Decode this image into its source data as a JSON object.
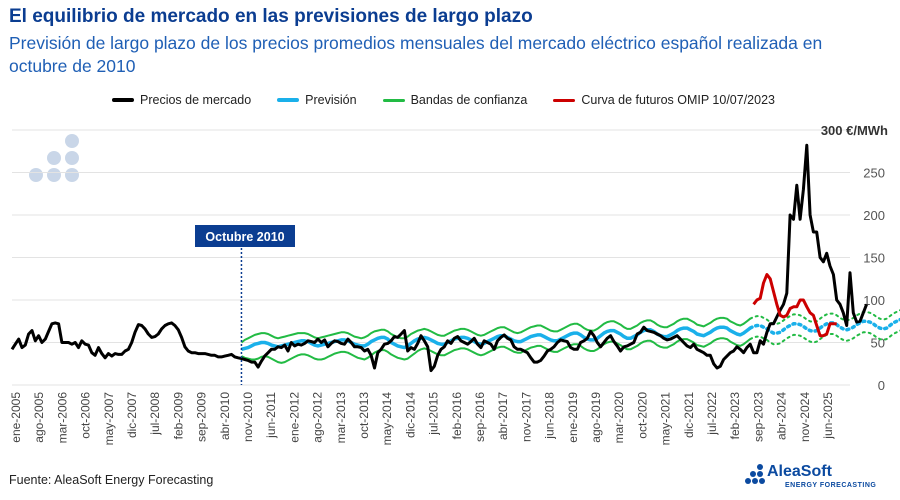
{
  "title": "El equilibrio de mercado en las previsiones de largo plazo",
  "subtitle": "Previsión de largo plazo de los precios promedios mensuales del mercado eléctrico español realizada en octubre de 2010",
  "source": "Fuente: AleaSoft Energy Forecasting",
  "brand": {
    "name": "AleaSoft",
    "tagline": "ENERGY FORECASTING"
  },
  "colors": {
    "market": "#000000",
    "forecast": "#1ab0ea",
    "bands": "#22bb44",
    "futures": "#cc0000",
    "marker_box": "#0b3d91"
  },
  "chart_data": {
    "type": "line",
    "ylabel": "€/MWh",
    "y_axis_unit_label": "300 €/MWh",
    "ylim": [
      0,
      300
    ],
    "yticks": [
      0,
      50,
      100,
      150,
      200,
      250
    ],
    "grid": true,
    "legend_position": "top",
    "x_range": [
      "2005-01",
      "2026-01"
    ],
    "xtick_labels": [
      "ene-2005",
      "ago-2005",
      "mar-2006",
      "oct-2006",
      "may-2007",
      "dic-2007",
      "jul-2008",
      "feb-2009",
      "sep-2009",
      "abr-2010",
      "nov-2010",
      "jun-2011",
      "ene-2012",
      "ago-2012",
      "mar-2013",
      "oct-2013",
      "may-2014",
      "dic-2014",
      "jul-2015",
      "feb-2016",
      "sep-2016",
      "abr-2017",
      "nov-2017",
      "jun-2018",
      "ene-2019",
      "ago-2019",
      "mar-2020",
      "oct-2020",
      "may-2021",
      "dic-2021",
      "jul-2022",
      "feb-2023",
      "sep-2023",
      "abr-2024",
      "nov-2024",
      "jun-2025"
    ],
    "annotation": {
      "label": "Octubre 2010",
      "x": "2010-10"
    },
    "legend": [
      "Precios de mercado",
      "Previsión",
      "Bandas de confianza",
      "Curva de futuros OMIP 10/07/2023"
    ],
    "series": [
      {
        "name": "Precios de mercado",
        "start": "2005-01",
        "values": [
          42,
          48,
          54,
          44,
          47,
          60,
          64,
          52,
          58,
          50,
          54,
          63,
          72,
          73,
          72,
          50,
          50,
          50,
          48,
          50,
          44,
          52,
          48,
          47,
          38,
          35,
          44,
          37,
          32,
          37,
          34,
          37,
          36,
          36,
          40,
          42,
          50,
          62,
          71,
          70,
          66,
          60,
          56,
          57,
          60,
          66,
          70,
          72,
          73,
          70,
          65,
          56,
          45,
          40,
          38,
          38,
          37,
          37,
          37,
          36,
          35,
          35,
          33,
          33,
          34,
          35,
          36,
          33,
          32,
          31,
          30,
          29,
          27,
          27,
          21,
          28,
          34,
          38,
          42,
          42,
          45,
          44,
          47,
          40,
          50,
          46,
          48,
          47,
          49,
          52,
          51,
          50,
          54,
          50,
          53,
          45,
          49,
          52,
          51,
          49,
          48,
          54,
          50,
          45,
          45,
          44,
          40,
          42,
          35,
          20,
          38,
          42,
          48,
          49,
          52,
          57,
          56,
          60,
          64,
          40,
          44,
          42,
          49,
          58,
          52,
          45,
          17,
          22,
          35,
          42,
          45,
          52,
          49,
          55,
          57,
          52,
          50,
          48,
          51,
          55,
          48,
          44,
          52,
          50,
          48,
          42,
          52,
          56,
          59,
          55,
          53,
          45,
          42,
          42,
          40,
          38,
          32,
          27,
          27,
          29,
          34,
          40,
          42,
          45,
          50,
          53,
          52,
          51,
          44,
          42,
          42,
          50,
          52,
          55,
          63,
          58,
          50,
          45,
          50,
          55,
          58,
          51,
          46,
          40,
          45,
          46,
          48,
          50,
          60,
          62,
          68,
          64,
          63,
          62,
          60,
          58,
          55,
          53,
          54,
          56,
          58,
          54,
          50,
          46,
          44,
          48,
          42,
          40,
          38,
          35,
          35,
          25,
          20,
          22,
          30,
          34,
          38,
          40,
          45,
          42,
          38,
          44,
          48,
          38,
          38,
          52,
          48,
          62,
          72,
          72,
          80,
          88,
          95,
          108,
          200,
          195,
          235,
          195,
          230,
          282,
          200,
          180,
          180,
          150,
          145,
          155,
          140,
          130,
          100,
          95,
          85,
          70,
          132,
          85,
          74,
          75,
          85,
          95
        ]
      },
      {
        "name": "Previsión",
        "start": "2010-10",
        "values": [
          42,
          43,
          44,
          46,
          48,
          49,
          50,
          50,
          49,
          47,
          46,
          45,
          46,
          47,
          48,
          49,
          50,
          51,
          52,
          52,
          51,
          49,
          47,
          46,
          47,
          48,
          49,
          50,
          51,
          52,
          53,
          53,
          52,
          50,
          48,
          47,
          46,
          46,
          48,
          51,
          53,
          55,
          56,
          56,
          54,
          50,
          48,
          46,
          45,
          44,
          46,
          49,
          52,
          54,
          55,
          56,
          55,
          53,
          51,
          49,
          48,
          48,
          50,
          52,
          54,
          55,
          56,
          56,
          55,
          53,
          51,
          49,
          48,
          49,
          51,
          53,
          55,
          57,
          58,
          58,
          56,
          54,
          52,
          51,
          51,
          53,
          55,
          57,
          58,
          59,
          59,
          57,
          55,
          53,
          52,
          52,
          54,
          56,
          58,
          60,
          61,
          61,
          59,
          56,
          54,
          53,
          53,
          55,
          58,
          61,
          63,
          64,
          64,
          62,
          60,
          57,
          55,
          55,
          57,
          59,
          62,
          64,
          65,
          65,
          63,
          60,
          58,
          57,
          57,
          59,
          61,
          64,
          66,
          67,
          67,
          65,
          63,
          60,
          59,
          58,
          60,
          62,
          65,
          67,
          68,
          68,
          67,
          64,
          62,
          60,
          59,
          61,
          64,
          67,
          69,
          70,
          70,
          68,
          66,
          63,
          61,
          61,
          62,
          65,
          68,
          70,
          72,
          72,
          71,
          69,
          66,
          64,
          63,
          64,
          67,
          70,
          72,
          73,
          73,
          71,
          68,
          66,
          65,
          66,
          68,
          71,
          73,
          75,
          75,
          74,
          72,
          69,
          67,
          66,
          67,
          70,
          73,
          75,
          77,
          77,
          75,
          73,
          70,
          68,
          67,
          69,
          72,
          75,
          77,
          78,
          78,
          76,
          73,
          71,
          70,
          71,
          74,
          76,
          78,
          79,
          79,
          77,
          75,
          72,
          71,
          72,
          74,
          77,
          79,
          80,
          80,
          78,
          75,
          73,
          72
        ]
      },
      {
        "name": "Bandas de confianza (superior)",
        "start": "2010-10",
        "values": [
          50,
          53,
          55,
          57,
          59,
          60,
          61,
          61,
          60,
          58,
          56,
          55,
          56,
          57,
          58,
          59,
          60,
          61,
          61,
          61,
          60,
          58,
          56,
          55,
          56,
          57,
          58,
          59,
          60,
          61,
          62,
          62,
          61,
          59,
          57,
          56,
          55,
          56,
          58,
          61,
          63,
          64,
          65,
          65,
          63,
          60,
          58,
          56,
          55,
          55,
          57,
          60,
          62,
          64,
          65,
          66,
          65,
          63,
          61,
          59,
          58,
          58,
          60,
          62,
          64,
          65,
          66,
          66,
          65,
          63,
          61,
          59,
          58,
          59,
          61,
          63,
          65,
          67,
          68,
          68,
          66,
          64,
          62,
          61,
          62,
          64,
          66,
          68,
          69,
          70,
          70,
          68,
          66,
          64,
          63,
          63,
          65,
          67,
          69,
          71,
          72,
          72,
          70,
          67,
          65,
          64,
          64,
          66,
          69,
          72,
          74,
          75,
          75,
          73,
          71,
          68,
          66,
          66,
          68,
          70,
          73,
          75,
          76,
          76,
          74,
          71,
          69,
          68,
          68,
          70,
          72,
          75,
          77,
          78,
          78,
          76,
          74,
          71,
          70,
          69,
          71,
          73,
          76,
          78,
          79,
          79,
          78,
          75,
          73,
          71,
          70,
          72,
          75,
          78,
          80,
          81,
          81,
          79,
          77,
          74,
          72,
          72,
          73,
          76,
          79,
          81,
          83,
          83,
          82,
          80,
          77,
          75,
          74,
          75,
          78,
          81,
          83,
          84,
          84,
          82,
          79,
          77,
          76,
          77,
          79,
          82,
          84,
          86,
          86,
          85,
          83,
          80,
          78,
          77,
          78,
          81,
          84,
          86,
          88,
          88,
          86,
          84,
          81,
          79,
          78,
          80,
          83,
          86,
          88,
          89,
          89,
          87,
          84,
          82,
          81,
          82,
          85,
          87,
          89,
          90,
          90,
          88,
          86,
          83,
          82,
          83,
          85,
          88,
          90,
          91,
          91,
          89,
          86,
          84,
          83
        ]
      },
      {
        "name": "Bandas de confianza (inferior)",
        "start": "2010-10",
        "values": [
          34,
          32,
          31,
          30,
          30,
          31,
          33,
          34,
          33,
          31,
          29,
          27,
          26,
          27,
          29,
          31,
          33,
          35,
          36,
          36,
          35,
          33,
          31,
          30,
          30,
          31,
          33,
          35,
          37,
          38,
          39,
          39,
          38,
          36,
          34,
          32,
          31,
          30,
          32,
          35,
          38,
          40,
          41,
          41,
          39,
          36,
          34,
          32,
          31,
          30,
          31,
          34,
          37,
          40,
          42,
          43,
          42,
          40,
          38,
          36,
          35,
          35,
          37,
          39,
          41,
          42,
          43,
          43,
          42,
          40,
          38,
          36,
          35,
          36,
          38,
          40,
          42,
          44,
          45,
          45,
          43,
          41,
          39,
          38,
          38,
          40,
          42,
          44,
          45,
          46,
          46,
          44,
          42,
          40,
          39,
          39,
          41,
          43,
          45,
          47,
          48,
          48,
          46,
          43,
          41,
          40,
          40,
          42,
          45,
          48,
          50,
          51,
          51,
          49,
          47,
          44,
          42,
          42,
          44,
          46,
          49,
          51,
          52,
          52,
          50,
          47,
          45,
          44,
          44,
          46,
          48,
          51,
          53,
          54,
          54,
          52,
          50,
          47,
          46,
          45,
          47,
          49,
          52,
          54,
          55,
          55,
          54,
          51,
          49,
          47,
          46,
          48,
          51,
          54,
          56,
          57,
          57,
          55,
          53,
          50,
          48,
          48,
          49,
          52,
          55,
          57,
          59,
          59,
          58,
          56,
          53,
          51,
          50,
          51,
          54,
          57,
          59,
          60,
          60,
          58,
          55,
          53,
          52,
          53,
          55,
          58,
          60,
          62,
          62,
          61,
          59,
          56,
          54,
          53,
          54,
          57,
          60,
          62,
          64,
          64,
          62,
          60,
          57,
          55,
          54,
          56,
          59,
          62,
          64,
          65,
          65,
          63,
          60,
          58,
          57,
          58,
          61,
          63,
          65,
          66,
          66,
          64,
          62,
          59,
          58,
          59,
          61,
          64,
          66,
          67,
          67,
          65,
          62,
          60,
          59
        ]
      },
      {
        "name": "Curva de futuros OMIP 10/07/2023",
        "start": "2023-08",
        "values": [
          95,
          100,
          102,
          120,
          130,
          125,
          110,
          95,
          82,
          80,
          82,
          90,
          92,
          92,
          100,
          100,
          92,
          85,
          82,
          70,
          58,
          58,
          60,
          72,
          72,
          72
        ]
      }
    ]
  }
}
